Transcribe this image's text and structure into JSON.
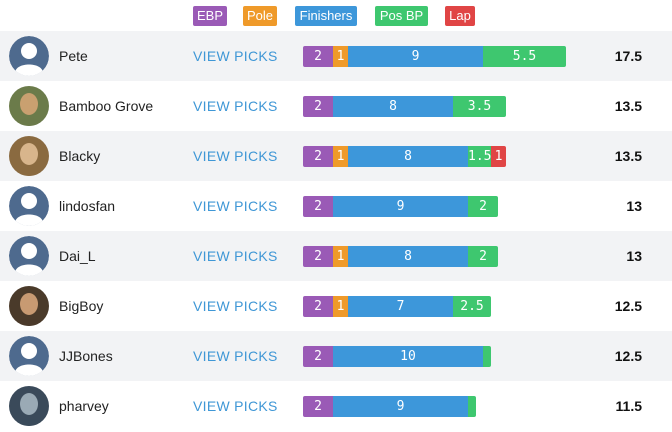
{
  "colors": {
    "ebp": "#9a5ab6",
    "pole": "#ef9a2a",
    "finishers": "#3d97da",
    "pos_bp": "#3ec76f",
    "lap": "#e04545",
    "link": "#3f97d6",
    "alt_row": "#f2f3f5"
  },
  "legend": [
    {
      "key": "ebp",
      "label": "EBP"
    },
    {
      "key": "pole",
      "label": "Pole"
    },
    {
      "key": "finishers",
      "label": "Finishers"
    },
    {
      "key": "pos_bp",
      "label": "Pos BP"
    },
    {
      "key": "lap",
      "label": "Lap"
    }
  ],
  "view_picks_label": "VIEW PICKS",
  "rows": [
    {
      "name": "Pete",
      "avatar": "default-avatar-icon",
      "total": "17.5",
      "segments": [
        {
          "key": "ebp",
          "value": 2,
          "label": "2"
        },
        {
          "key": "pole",
          "value": 1,
          "label": "1"
        },
        {
          "key": "finishers",
          "value": 9,
          "label": "9"
        },
        {
          "key": "pos_bp",
          "value": 5.5,
          "label": "5.5"
        }
      ]
    },
    {
      "name": "Bamboo Grove",
      "avatar": "photo-avatar-icon",
      "total": "13.5",
      "segments": [
        {
          "key": "ebp",
          "value": 2,
          "label": "2"
        },
        {
          "key": "finishers",
          "value": 8,
          "label": "8"
        },
        {
          "key": "pos_bp",
          "value": 3.5,
          "label": "3.5"
        }
      ]
    },
    {
      "name": "Blacky",
      "avatar": "photo-avatar-icon",
      "total": "13.5",
      "segments": [
        {
          "key": "ebp",
          "value": 2,
          "label": "2"
        },
        {
          "key": "pole",
          "value": 1,
          "label": "1"
        },
        {
          "key": "finishers",
          "value": 8,
          "label": "8"
        },
        {
          "key": "pos_bp",
          "value": 1.5,
          "label": "1.5"
        },
        {
          "key": "lap",
          "value": 1,
          "label": "1"
        }
      ]
    },
    {
      "name": "lindosfan",
      "avatar": "default-avatar-icon",
      "total": "13",
      "segments": [
        {
          "key": "ebp",
          "value": 2,
          "label": "2"
        },
        {
          "key": "finishers",
          "value": 9,
          "label": "9"
        },
        {
          "key": "pos_bp",
          "value": 2,
          "label": "2"
        }
      ]
    },
    {
      "name": "Dai_L",
      "avatar": "default-avatar-icon",
      "total": "13",
      "segments": [
        {
          "key": "ebp",
          "value": 2,
          "label": "2"
        },
        {
          "key": "pole",
          "value": 1,
          "label": "1"
        },
        {
          "key": "finishers",
          "value": 8,
          "label": "8"
        },
        {
          "key": "pos_bp",
          "value": 2,
          "label": "2"
        }
      ]
    },
    {
      "name": "BigBoy",
      "avatar": "photo-avatar-icon",
      "total": "12.5",
      "segments": [
        {
          "key": "ebp",
          "value": 2,
          "label": "2"
        },
        {
          "key": "pole",
          "value": 1,
          "label": "1"
        },
        {
          "key": "finishers",
          "value": 7,
          "label": "7"
        },
        {
          "key": "pos_bp",
          "value": 2.5,
          "label": "2.5"
        }
      ]
    },
    {
      "name": "JJBones",
      "avatar": "default-avatar-icon",
      "total": "12.5",
      "segments": [
        {
          "key": "ebp",
          "value": 2,
          "label": "2"
        },
        {
          "key": "finishers",
          "value": 10,
          "label": "10"
        },
        {
          "key": "pos_bp",
          "value": 0.5,
          "label": ""
        }
      ]
    },
    {
      "name": "pharvey",
      "avatar": "photo-avatar-icon",
      "total": "11.5",
      "segments": [
        {
          "key": "ebp",
          "value": 2,
          "label": "2"
        },
        {
          "key": "finishers",
          "value": 9,
          "label": "9"
        },
        {
          "key": "pos_bp",
          "value": 0.5,
          "label": ""
        }
      ]
    }
  ]
}
